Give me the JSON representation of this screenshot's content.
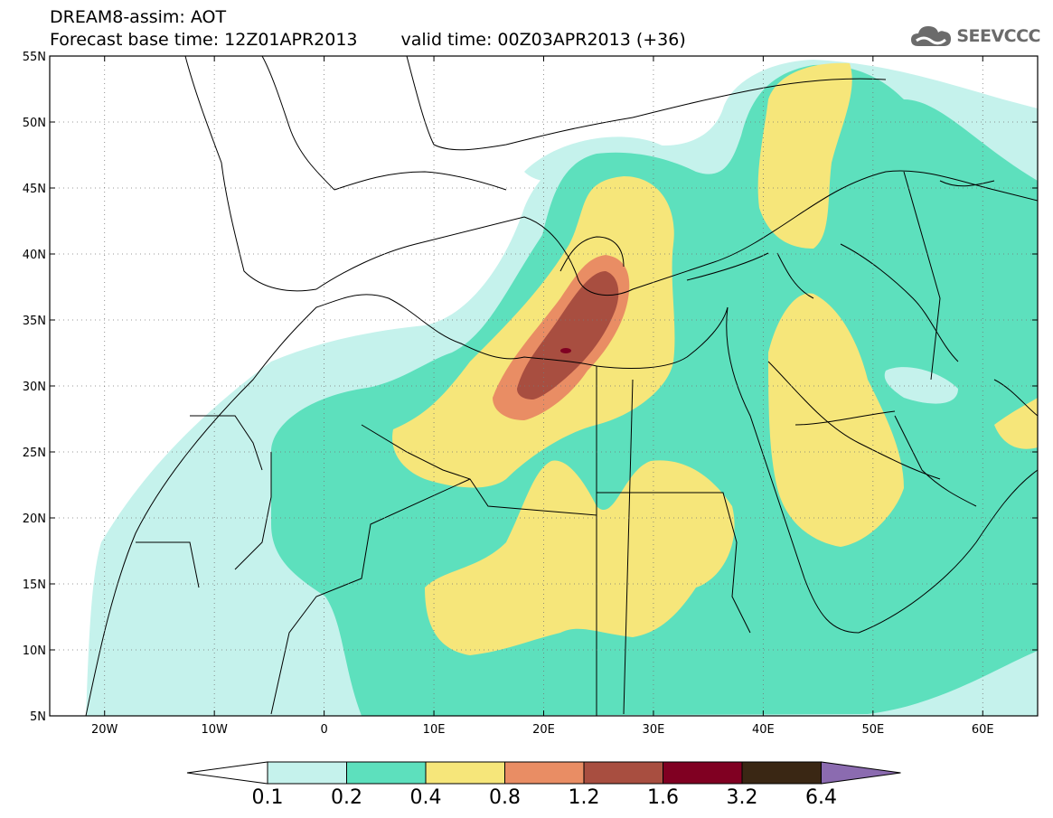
{
  "header": {
    "line1": "DREAM8-assim: AOT",
    "base_time": "Forecast base time: 12Z01APR2013",
    "valid_time": "valid time: 00Z03APR2013 (+36)"
  },
  "logo": {
    "icon": "cloud-icon",
    "text": "SEEVCCC"
  },
  "map": {
    "lon_range": [
      -25,
      65
    ],
    "lat_range": [
      5,
      55
    ],
    "lat_ticks": [
      {
        "value": 55,
        "label": "55N"
      },
      {
        "value": 50,
        "label": "50N"
      },
      {
        "value": 45,
        "label": "45N"
      },
      {
        "value": 40,
        "label": "40N"
      },
      {
        "value": 35,
        "label": "35N"
      },
      {
        "value": 30,
        "label": "30N"
      },
      {
        "value": 25,
        "label": "25N"
      },
      {
        "value": 20,
        "label": "20N"
      },
      {
        "value": 15,
        "label": "15N"
      },
      {
        "value": 10,
        "label": "10N"
      },
      {
        "value": 5,
        "label": "5N"
      }
    ],
    "lon_ticks": [
      {
        "value": -20,
        "label": "20W"
      },
      {
        "value": -10,
        "label": "10W"
      },
      {
        "value": 0,
        "label": "0"
      },
      {
        "value": 10,
        "label": "10E"
      },
      {
        "value": 20,
        "label": "20E"
      },
      {
        "value": 30,
        "label": "30E"
      },
      {
        "value": 40,
        "label": "40E"
      },
      {
        "value": 50,
        "label": "50E"
      },
      {
        "value": 60,
        "label": "60E"
      }
    ],
    "grid": true
  },
  "colorbar": {
    "labels": [
      "0.1",
      "0.2",
      "0.4",
      "0.8",
      "1.2",
      "1.6",
      "3.2",
      "6.4"
    ],
    "colors": [
      "#ffffff",
      "#c5f2ec",
      "#5de0bd",
      "#f6e67a",
      "#e98d64",
      "#a84e40",
      "#800022",
      "#3a2714",
      "#8b6bb0"
    ]
  }
}
